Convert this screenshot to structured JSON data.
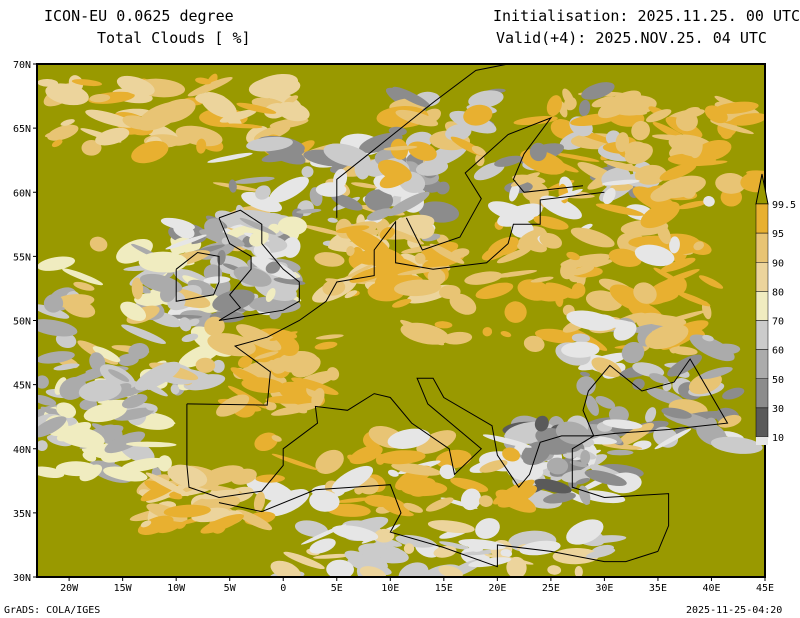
{
  "header": {
    "model": "ICON-EU 0.0625 degree",
    "field": "Total Clouds  [ %]",
    "init": "Initialisation: 2025.11.25. 00 UTC",
    "valid": "Valid(+4): 2025.NOV.25. 04 UTC"
  },
  "axes": {
    "lat_labels": [
      "70N",
      "65N",
      "60N",
      "55N",
      "50N",
      "45N",
      "40N",
      "35N",
      "30N"
    ],
    "lat_values": [
      70,
      65,
      60,
      55,
      50,
      45,
      40,
      35,
      30
    ],
    "lon_labels": [
      "20W",
      "15W",
      "10W",
      "5W",
      "0",
      "5E",
      "10E",
      "15E",
      "20E",
      "25E",
      "30E",
      "35E",
      "40E",
      "45E"
    ],
    "lon_values": [
      -20,
      -15,
      -10,
      -5,
      0,
      5,
      10,
      15,
      20,
      25,
      30,
      35,
      40,
      45
    ],
    "lon_range": [
      -23,
      45
    ],
    "lat_range": [
      30,
      70
    ]
  },
  "legend": {
    "labels": [
      "99.5",
      "95",
      "90",
      "80",
      "70",
      "60",
      "50",
      "30",
      "10"
    ],
    "levels": [
      10,
      30,
      50,
      60,
      70,
      80,
      90,
      95,
      99.5
    ],
    "colors": [
      "#e6e6e6",
      "#5a5a5a",
      "#8c8c8c",
      "#ababab",
      "#cbcbcb",
      "#f0ecc0",
      "#ecd49c",
      "#e8c474",
      "#e8b030",
      "#999900"
    ]
  },
  "footer": {
    "left": "GrADS: COLA/IGES",
    "right": "2025-11-25-04:20"
  }
}
